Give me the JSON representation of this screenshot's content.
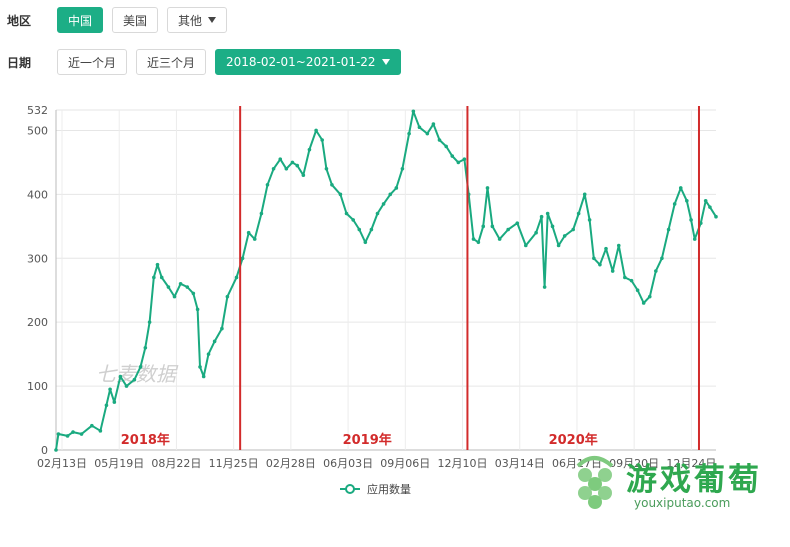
{
  "filters": {
    "region": {
      "label": "地区",
      "options": [
        "中国",
        "美国"
      ],
      "selected": "中国",
      "more_label": "其他"
    },
    "date": {
      "label": "日期",
      "options": [
        "近一个月",
        "近三个月"
      ],
      "range_label": "2018-02-01~2021-01-22"
    }
  },
  "watermark": "七麦数据",
  "logo": {
    "text": "游戏葡萄",
    "url": "youxiputao.com"
  },
  "colors": {
    "accent": "#1cae86",
    "series": "#1aaa80",
    "marker": "#d22b2b"
  },
  "chart_data": {
    "type": "line",
    "title": "",
    "xlabel": "",
    "ylabel": "",
    "x_ticks": [
      "02月13日",
      "05月19日",
      "08月22日",
      "11月25日",
      "02月28日",
      "06月03日",
      "09月06日",
      "12月10日",
      "03月14日",
      "06月17日",
      "09月20日",
      "12月24日"
    ],
    "x_range": [
      "2018-02-01",
      "2021-01-22"
    ],
    "y_ticks": [
      0,
      100,
      200,
      300,
      400,
      500,
      532
    ],
    "ylim": [
      0,
      532
    ],
    "grid": true,
    "legend": {
      "position": "bottom-center",
      "entries": [
        "应用数量"
      ]
    },
    "series": [
      {
        "name": "应用数量",
        "points": [
          [
            "2018-02-01",
            0
          ],
          [
            "2018-02-05",
            25
          ],
          [
            "2018-02-20",
            22
          ],
          [
            "2018-03-01",
            28
          ],
          [
            "2018-03-15",
            25
          ],
          [
            "2018-04-01",
            38
          ],
          [
            "2018-04-15",
            30
          ],
          [
            "2018-04-25",
            70
          ],
          [
            "2018-05-01",
            95
          ],
          [
            "2018-05-08",
            75
          ],
          [
            "2018-05-18",
            115
          ],
          [
            "2018-05-28",
            100
          ],
          [
            "2018-06-10",
            110
          ],
          [
            "2018-06-20",
            130
          ],
          [
            "2018-06-28",
            160
          ],
          [
            "2018-07-05",
            200
          ],
          [
            "2018-07-12",
            270
          ],
          [
            "2018-07-18",
            290
          ],
          [
            "2018-07-25",
            270
          ],
          [
            "2018-08-05",
            255
          ],
          [
            "2018-08-15",
            240
          ],
          [
            "2018-08-25",
            260
          ],
          [
            "2018-09-05",
            255
          ],
          [
            "2018-09-15",
            245
          ],
          [
            "2018-09-22",
            220
          ],
          [
            "2018-09-26",
            130
          ],
          [
            "2018-10-02",
            115
          ],
          [
            "2018-10-10",
            150
          ],
          [
            "2018-10-20",
            170
          ],
          [
            "2018-11-01",
            190
          ],
          [
            "2018-11-10",
            240
          ],
          [
            "2018-11-25",
            270
          ],
          [
            "2018-12-05",
            300
          ],
          [
            "2018-12-15",
            340
          ],
          [
            "2018-12-25",
            330
          ],
          [
            "2019-01-05",
            370
          ],
          [
            "2019-01-15",
            415
          ],
          [
            "2019-01-25",
            440
          ],
          [
            "2019-02-05",
            455
          ],
          [
            "2019-02-15",
            440
          ],
          [
            "2019-02-25",
            450
          ],
          [
            "2019-03-05",
            445
          ],
          [
            "2019-03-15",
            430
          ],
          [
            "2019-03-25",
            470
          ],
          [
            "2019-04-05",
            500
          ],
          [
            "2019-04-15",
            485
          ],
          [
            "2019-04-22",
            440
          ],
          [
            "2019-05-01",
            415
          ],
          [
            "2019-05-15",
            400
          ],
          [
            "2019-05-25",
            370
          ],
          [
            "2019-06-05",
            360
          ],
          [
            "2019-06-15",
            345
          ],
          [
            "2019-06-25",
            325
          ],
          [
            "2019-07-05",
            345
          ],
          [
            "2019-07-15",
            370
          ],
          [
            "2019-07-25",
            385
          ],
          [
            "2019-08-05",
            400
          ],
          [
            "2019-08-15",
            410
          ],
          [
            "2019-08-25",
            440
          ],
          [
            "2019-09-05",
            495
          ],
          [
            "2019-09-12",
            530
          ],
          [
            "2019-09-22",
            505
          ],
          [
            "2019-10-05",
            495
          ],
          [
            "2019-10-15",
            510
          ],
          [
            "2019-10-25",
            485
          ],
          [
            "2019-11-05",
            475
          ],
          [
            "2019-11-15",
            460
          ],
          [
            "2019-11-25",
            450
          ],
          [
            "2019-12-05",
            455
          ],
          [
            "2019-12-12",
            400
          ],
          [
            "2019-12-20",
            330
          ],
          [
            "2019-12-28",
            325
          ],
          [
            "2020-01-05",
            350
          ],
          [
            "2020-01-12",
            410
          ],
          [
            "2020-01-20",
            350
          ],
          [
            "2020-02-01",
            330
          ],
          [
            "2020-02-15",
            345
          ],
          [
            "2020-03-01",
            355
          ],
          [
            "2020-03-15",
            320
          ],
          [
            "2020-04-01",
            340
          ],
          [
            "2020-04-10",
            365
          ],
          [
            "2020-04-15",
            255
          ],
          [
            "2020-04-20",
            370
          ],
          [
            "2020-04-28",
            350
          ],
          [
            "2020-05-08",
            320
          ],
          [
            "2020-05-18",
            335
          ],
          [
            "2020-06-01",
            345
          ],
          [
            "2020-06-10",
            370
          ],
          [
            "2020-06-20",
            400
          ],
          [
            "2020-06-28",
            360
          ],
          [
            "2020-07-05",
            300
          ],
          [
            "2020-07-15",
            290
          ],
          [
            "2020-07-25",
            315
          ],
          [
            "2020-08-05",
            280
          ],
          [
            "2020-08-15",
            320
          ],
          [
            "2020-08-25",
            270
          ],
          [
            "2020-09-05",
            265
          ],
          [
            "2020-09-15",
            250
          ],
          [
            "2020-09-25",
            230
          ],
          [
            "2020-10-05",
            240
          ],
          [
            "2020-10-15",
            280
          ],
          [
            "2020-10-25",
            300
          ],
          [
            "2020-11-05",
            345
          ],
          [
            "2020-11-15",
            385
          ],
          [
            "2020-11-25",
            410
          ],
          [
            "2020-12-05",
            390
          ],
          [
            "2020-12-12",
            360
          ],
          [
            "2020-12-18",
            330
          ],
          [
            "2020-12-28",
            355
          ],
          [
            "2021-01-05",
            390
          ],
          [
            "2021-01-12",
            380
          ],
          [
            "2021-01-22",
            365
          ]
        ]
      }
    ],
    "year_markers": [
      {
        "label": "2018年",
        "line_date": null,
        "label_date": "2018-06-28"
      },
      {
        "label": "2019年",
        "line_date": "2018-12-01",
        "label_date": "2019-06-28"
      },
      {
        "label": "2020年",
        "line_date": "2019-12-10",
        "label_date": "2020-06-01"
      },
      {
        "label": "",
        "line_date": "2020-12-25",
        "label_date": null
      }
    ]
  }
}
